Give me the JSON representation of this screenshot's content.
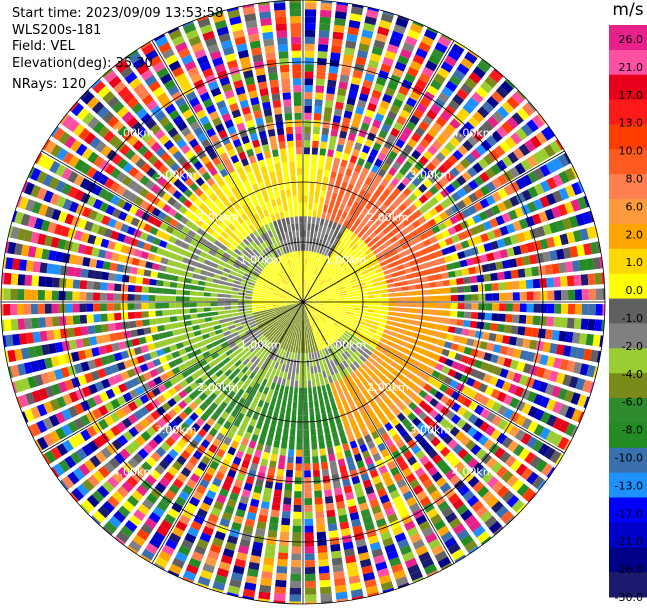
{
  "info": {
    "start_time": "Start time: 2023/09/09 13:53:58",
    "instrument": "WLS200s-181",
    "field": "Field: VEL",
    "elevation": "Elevation(deg): 35.30",
    "nrays": "NRays: 120"
  },
  "colorbar": {
    "unit": "m/s",
    "ticks": [
      "26.0",
      "21.0",
      "17.0",
      "13.0",
      "10.0",
      "8.0",
      "6.0",
      "2.0",
      "1.0",
      "0.0",
      "-1.0",
      "-2.0",
      "-4.0",
      "-6.0",
      "-8.0",
      "-10.0",
      "-13.0",
      "-17.0",
      "-21.0",
      "-26.0",
      "-30.0"
    ],
    "colors": [
      "#e8208a",
      "#ff4fa3",
      "#e8001a",
      "#ff1a1a",
      "#ff3d00",
      "#ff5a1f",
      "#ff7f50",
      "#ff9b3d",
      "#ffa500",
      "#ffd700",
      "#ffff00",
      "#606060",
      "#808080",
      "#9acd32",
      "#7a8b1a",
      "#2e8b2e",
      "#228b22",
      "#3a6fb0",
      "#1e90ff",
      "#0000ff",
      "#0000cd",
      "#00008b",
      "#1a1a6e"
    ]
  },
  "chart_data": {
    "type": "heatmap",
    "field": "VEL",
    "units": "m/s",
    "range_ring_labels": [
      "1.00km",
      "2.00km",
      "3.00km",
      "4.00km"
    ],
    "color_scale_min": -30.0,
    "color_scale_max": 26.0,
    "regions": [
      {
        "range_km": [
          0,
          0.9
        ],
        "velocity": "positive, ~2 (yellow)"
      },
      {
        "range_km": [
          0.9,
          1.5
        ],
        "azimuth": "east",
        "velocity": "~2 to 10 (yellow-orange)"
      },
      {
        "range_km": [
          0.9,
          1.5
        ],
        "azimuth": "west",
        "velocity": "~-2 to -4 (green)"
      },
      {
        "range_km": [
          1.5,
          2.5
        ],
        "azimuth": "north-east",
        "velocity": "~10 to 17 (red-orange)"
      },
      {
        "range_km": [
          1.5,
          2.5
        ],
        "azimuth": "south-west",
        "velocity": "~-6 (dark green)"
      },
      {
        "range_km": [
          2.5,
          4.2
        ],
        "velocity": "noise (random)"
      }
    ]
  }
}
